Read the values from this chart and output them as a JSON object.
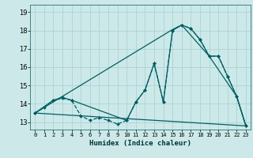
{
  "xlabel": "Humidex (Indice chaleur)",
  "background_color": "#cce8e8",
  "grid_color": "#aad4d4",
  "line_color": "#006060",
  "xlim": [
    -0.5,
    23.5
  ],
  "ylim": [
    12.6,
    19.4
  ],
  "yticks": [
    13,
    14,
    15,
    16,
    17,
    18,
    19
  ],
  "xticks": [
    0,
    1,
    2,
    3,
    4,
    5,
    6,
    7,
    8,
    9,
    10,
    11,
    12,
    13,
    14,
    15,
    16,
    17,
    18,
    19,
    20,
    21,
    22,
    23
  ],
  "line1_x": [
    0,
    1,
    2,
    3,
    4,
    5,
    6,
    7,
    8,
    9,
    10,
    11,
    12,
    13,
    14,
    15,
    16,
    17,
    18,
    19,
    20,
    21,
    22,
    23
  ],
  "line1_y": [
    13.5,
    13.8,
    14.2,
    14.3,
    14.2,
    13.35,
    13.1,
    13.25,
    13.1,
    12.9,
    13.1,
    14.1,
    14.75,
    16.2,
    14.1,
    18.0,
    18.3,
    18.1,
    17.5,
    16.6,
    16.6,
    15.5,
    14.4,
    12.8
  ],
  "line2_x": [
    0,
    2,
    3,
    4,
    10,
    11,
    12,
    13,
    14,
    15,
    16,
    17,
    18,
    19,
    20,
    21,
    22,
    23
  ],
  "line2_y": [
    13.5,
    14.2,
    14.35,
    14.2,
    13.1,
    14.1,
    14.75,
    16.2,
    14.1,
    18.0,
    18.3,
    18.1,
    17.5,
    16.6,
    16.6,
    15.5,
    14.4,
    12.8
  ],
  "line3_x": [
    0,
    15,
    16,
    19,
    22,
    23
  ],
  "line3_y": [
    13.5,
    18.05,
    18.3,
    16.6,
    14.4,
    12.8
  ],
  "line4_x": [
    0,
    23
  ],
  "line4_y": [
    13.5,
    12.8
  ]
}
